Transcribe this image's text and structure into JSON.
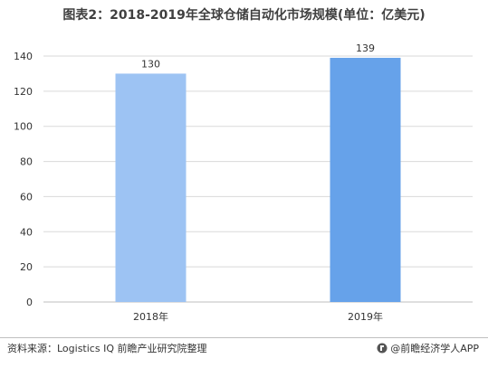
{
  "header": {
    "title": "图表2：2018-2019年全球仓储自动化市场规模(单位：亿美元)"
  },
  "footer": {
    "source": "资料来源：Logistics IQ 前瞻产业研究院整理",
    "credit": "@前瞻经济学人APP"
  },
  "colors": {
    "bar_2018": "#9dc3f3",
    "bar_2019": "#66a2ea",
    "grid": "#d9d9d9",
    "axis": "#bfbfbf"
  },
  "chart_data": {
    "type": "bar",
    "title": "图表2：2018-2019年全球仓储自动化市场规模(单位：亿美元)",
    "categories": [
      "2018年",
      "2019年"
    ],
    "values": [
      130,
      139
    ],
    "data_labels": [
      "130",
      "139"
    ],
    "ylim": [
      0,
      140
    ],
    "yticks": [
      "0",
      "20",
      "40",
      "60",
      "80",
      "100",
      "120",
      "140"
    ],
    "grid": true,
    "xlabel": "",
    "ylabel": ""
  }
}
